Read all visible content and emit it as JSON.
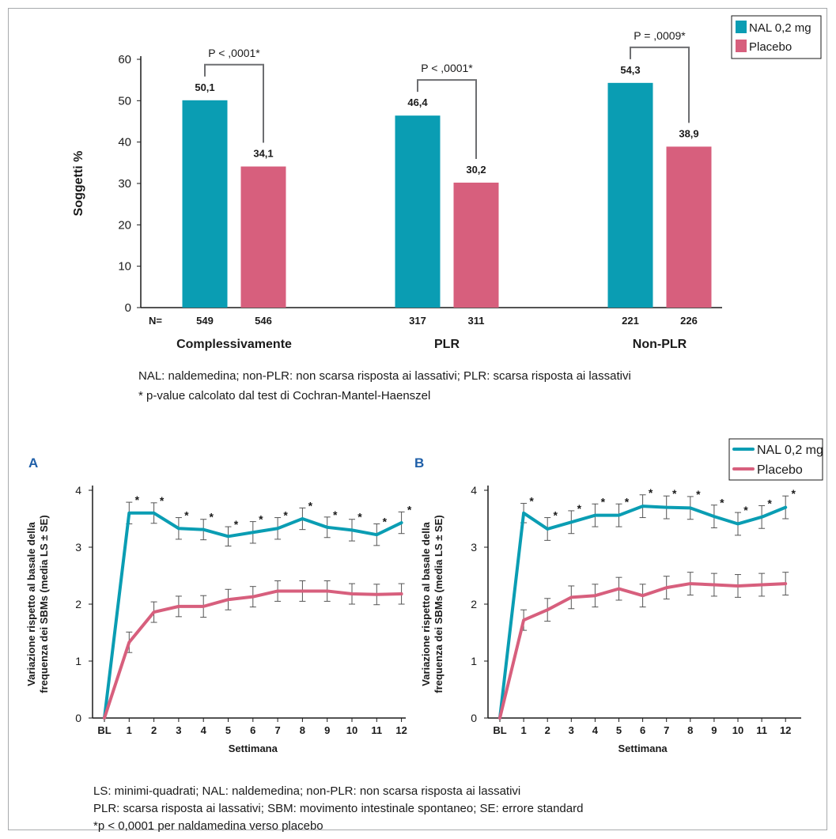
{
  "colors": {
    "nal": "#0a9db3",
    "placebo": "#d75f7d",
    "axis": "#1a1a1a",
    "bracket": "#6d6e71",
    "panel_letter": "#1f5fa8"
  },
  "bar_chart_notes": {
    "line1": "NAL: naldemedina; non-PLR: non scarsa risposta ai lassativi; PLR: scarsa risposta ai lassativi",
    "line2": "* p-value calcolato dal test di Cochran-Mantel-Haenszel"
  },
  "line_chart_notes": {
    "line1": "LS: minimi-quadrati; NAL: naldemedina; non-PLR: non scarsa risposta ai lassativi",
    "line2": "PLR: scarsa risposta ai lassativi; SBM: movimento intestinale spontaneo; SE: errore standard",
    "line3": "*p < 0,0001 per naldamedina verso placebo"
  },
  "panels": {
    "a": "A",
    "b": "B"
  },
  "chart_data": [
    {
      "type": "bar",
      "ylabel": "Soggetti %",
      "ylim": [
        0,
        60
      ],
      "yticks": [
        0,
        10,
        20,
        30,
        40,
        50,
        60
      ],
      "categories": [
        "Complessivamente",
        "PLR",
        "Non-PLR"
      ],
      "series": [
        {
          "name": "NAL 0,2 mg",
          "values": [
            50.1,
            46.4,
            54.3
          ],
          "labels": [
            "50,1",
            "46,4",
            "54,3"
          ],
          "n": [
            "549",
            "317",
            "221"
          ]
        },
        {
          "name": "Placebo",
          "values": [
            34.1,
            30.2,
            38.9
          ],
          "labels": [
            "34,1",
            "30,2",
            "38,9"
          ],
          "n": [
            "546",
            "311",
            "226"
          ]
        }
      ],
      "n_label": "N=",
      "pvalues": [
        "P < ,0001*",
        "P < ,0001*",
        "P = ,0009*"
      ],
      "legend": "top-right"
    },
    {
      "type": "line",
      "panel": "A",
      "xlabel": "Settimana",
      "ylabel_line1": "Variazione rispetto al basale della",
      "ylabel_line2": "frequenza dei SBMs (media LS ± SE)",
      "x": [
        "BL",
        "1",
        "2",
        "3",
        "4",
        "5",
        "6",
        "7",
        "8",
        "9",
        "10",
        "11",
        "12"
      ],
      "ylim": [
        0,
        4
      ],
      "yticks": [
        0,
        1,
        2,
        3,
        4
      ],
      "series": [
        {
          "name": "NAL 0,2 mg",
          "values": [
            0,
            3.6,
            3.6,
            3.33,
            3.31,
            3.19,
            3.26,
            3.33,
            3.5,
            3.35,
            3.3,
            3.22,
            3.43
          ],
          "se": [
            0,
            0.19,
            0.18,
            0.19,
            0.18,
            0.17,
            0.19,
            0.19,
            0.19,
            0.18,
            0.19,
            0.19,
            0.19
          ],
          "stars": [
            false,
            true,
            true,
            true,
            true,
            true,
            true,
            true,
            true,
            true,
            true,
            true,
            true
          ]
        },
        {
          "name": "Placebo",
          "values": [
            0,
            1.33,
            1.86,
            1.96,
            1.96,
            2.08,
            2.13,
            2.23,
            2.23,
            2.23,
            2.18,
            2.17,
            2.18
          ],
          "se": [
            0,
            0.18,
            0.18,
            0.18,
            0.19,
            0.18,
            0.18,
            0.18,
            0.18,
            0.18,
            0.18,
            0.18,
            0.18
          ]
        }
      ],
      "legend": "top-right"
    },
    {
      "type": "line",
      "panel": "B",
      "xlabel": "Settimana",
      "ylabel_line1": "Variazione rispetto al basale della",
      "ylabel_line2": "frequenza dei SBMs (media LS ± SE)",
      "x": [
        "BL",
        "1",
        "2",
        "3",
        "4",
        "5",
        "6",
        "7",
        "8",
        "9",
        "10",
        "11",
        "12"
      ],
      "ylim": [
        0,
        4
      ],
      "yticks": [
        0,
        1,
        2,
        3,
        4
      ],
      "series": [
        {
          "name": "NAL 0,2 mg",
          "values": [
            0,
            3.6,
            3.32,
            3.44,
            3.56,
            3.56,
            3.72,
            3.7,
            3.69,
            3.54,
            3.41,
            3.53,
            3.7
          ],
          "se": [
            0,
            0.17,
            0.2,
            0.2,
            0.2,
            0.2,
            0.2,
            0.2,
            0.2,
            0.2,
            0.2,
            0.2,
            0.2
          ],
          "stars": [
            false,
            true,
            true,
            true,
            true,
            true,
            true,
            true,
            true,
            true,
            true,
            true,
            true
          ]
        },
        {
          "name": "Placebo",
          "values": [
            0,
            1.72,
            1.9,
            2.12,
            2.15,
            2.27,
            2.15,
            2.29,
            2.36,
            2.34,
            2.32,
            2.34,
            2.36
          ],
          "se": [
            0,
            0.18,
            0.2,
            0.2,
            0.2,
            0.2,
            0.2,
            0.2,
            0.2,
            0.2,
            0.2,
            0.2,
            0.2
          ]
        }
      ],
      "legend": "top-right"
    }
  ]
}
